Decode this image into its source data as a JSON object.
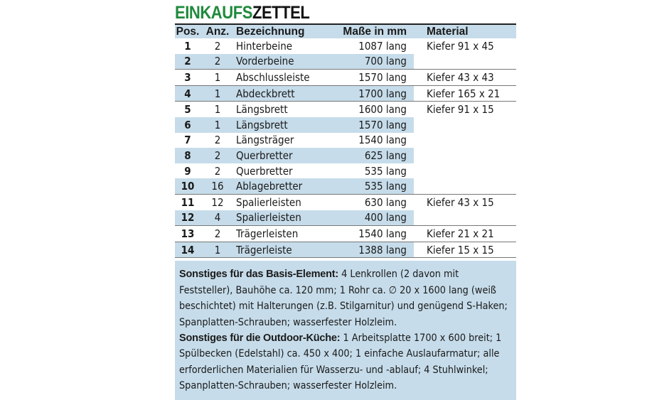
{
  "title": {
    "part1": "EINKAUFS",
    "part2": "ZETTEL"
  },
  "colors": {
    "title_green": "#1f8a3c",
    "shade_blue": "#c6dcea"
  },
  "table": {
    "headers": [
      "Pos.",
      "Anz.",
      "Bezeichnung",
      "Maße in mm",
      "Material"
    ],
    "rows": [
      {
        "pos": "1",
        "anz": "2",
        "bez": "Hinterbeine",
        "mass": "1087 lang",
        "mat": "Kiefer 91 x 45"
      },
      {
        "pos": "2",
        "anz": "2",
        "bez": "Vorderbeine",
        "mass": "700 lang",
        "mat": ""
      },
      {
        "pos": "3",
        "anz": "1",
        "bez": "Abschlussleiste",
        "mass": "1570 lang",
        "mat": "Kiefer 43 x 43"
      },
      {
        "pos": "4",
        "anz": "1",
        "bez": "Abdeckbrett",
        "mass": "1700 lang",
        "mat": "Kiefer 165 x 21"
      },
      {
        "pos": "5",
        "anz": "1",
        "bez": "Längsbrett",
        "mass": "1600 lang",
        "mat": "Kiefer 91 x 15"
      },
      {
        "pos": "6",
        "anz": "1",
        "bez": "Längsbrett",
        "mass": "1570 lang",
        "mat": ""
      },
      {
        "pos": "7",
        "anz": "2",
        "bez": "Längsträger",
        "mass": "1540 lang",
        "mat": ""
      },
      {
        "pos": "8",
        "anz": "2",
        "bez": "Querbretter",
        "mass": "625 lang",
        "mat": ""
      },
      {
        "pos": "9",
        "anz": "2",
        "bez": "Querbretter",
        "mass": "535 lang",
        "mat": ""
      },
      {
        "pos": "10",
        "anz": "16",
        "bez": "Ablagebretter",
        "mass": "535 lang",
        "mat": ""
      },
      {
        "pos": "11",
        "anz": "12",
        "bez": "Spalierleisten",
        "mass": "630 lang",
        "mat": "Kiefer 43 x 15"
      },
      {
        "pos": "12",
        "anz": "4",
        "bez": "Spalierleisten",
        "mass": "400 lang",
        "mat": ""
      },
      {
        "pos": "13",
        "anz": "2",
        "bez": "Trägerleisten",
        "mass": "1540 lang",
        "mat": "Kiefer 21 x 21"
      },
      {
        "pos": "14",
        "anz": "1",
        "bez": "Trägerleiste",
        "mass": "1388 lang",
        "mat": "Kiefer 15 x 15"
      }
    ]
  },
  "notes": {
    "basis_label": "Sonstiges für das Basis-Element:",
    "basis_text": " 4 Lenkrollen (2 davon mit Feststeller), Bauhöhe ca. 120 mm; 1 Rohr ca. ∅ 20 x 1600 lang (weiß beschichtet) mit Halterungen (z.B. Stilgarnitur) und genügend S-Haken; Spanplatten-Schrauben; wasserfester Holzleim.",
    "kueche_label": "Sonstiges für die Outdoor-Küche:",
    "kueche_text": " 1 Arbeitsplatte 1700 x 600 breit; 1 Spülbecken (Edelstahl) ca. 450 x 400; 1 einfache Auslaufarmatur; alle erforderlichen Materialien für Wasserzu- und -ablauf; 4 Stuhlwinkel; Spanplatten-Schrauben; wasserfester Holzleim."
  }
}
